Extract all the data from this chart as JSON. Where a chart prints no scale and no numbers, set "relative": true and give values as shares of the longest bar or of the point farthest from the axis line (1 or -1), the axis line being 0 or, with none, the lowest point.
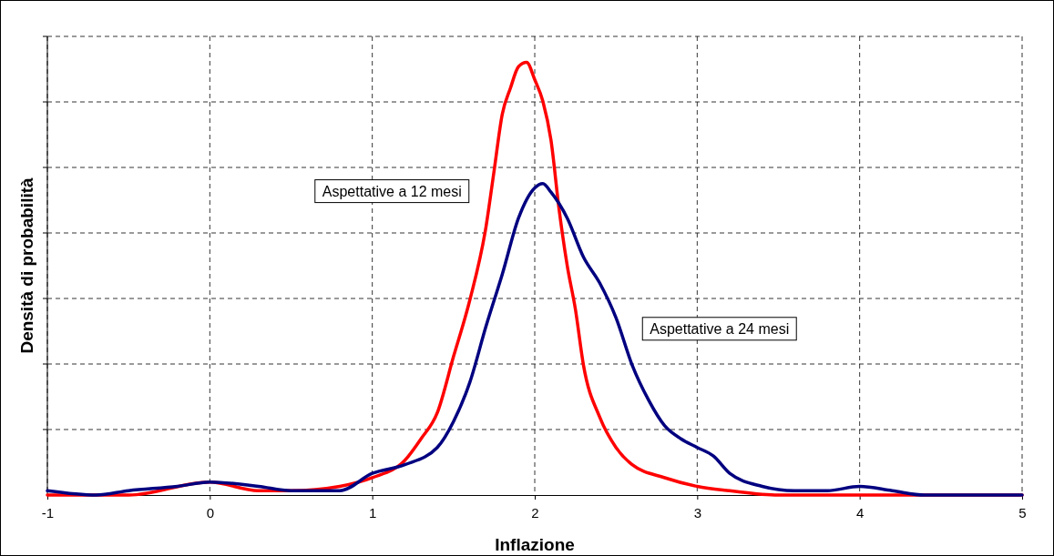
{
  "chart_data": {
    "type": "line",
    "xlabel": "Inflazione",
    "ylabel": "Densità di probabilità",
    "relative": true,
    "xlim": [
      -1,
      5
    ],
    "xticks": [
      -1,
      0,
      1,
      2,
      3,
      4,
      5
    ],
    "grid": true,
    "marker": "none",
    "line_style": "solid",
    "series": [
      {
        "name": "Aspettative a 12 mesi",
        "color": "#ff0000",
        "x": [
          -1,
          -0.5,
          0,
          0.3,
          0.5,
          0.8,
          1.0,
          1.2,
          1.3,
          1.4,
          1.5,
          1.6,
          1.7,
          1.75,
          1.8,
          1.85,
          1.9,
          1.95,
          2.0,
          2.05,
          2.1,
          2.15,
          2.2,
          2.25,
          2.3,
          2.4,
          2.5,
          2.6,
          2.8,
          3.0,
          3.2,
          3.5,
          4,
          5
        ],
        "values": [
          0,
          0,
          0.03,
          0.01,
          0.01,
          0.02,
          0.04,
          0.08,
          0.13,
          0.19,
          0.32,
          0.45,
          0.62,
          0.75,
          0.88,
          0.94,
          0.99,
          1.0,
          0.96,
          0.91,
          0.82,
          0.66,
          0.53,
          0.43,
          0.3,
          0.18,
          0.11,
          0.07,
          0.04,
          0.02,
          0.01,
          0,
          0,
          0
        ]
      },
      {
        "name": "Aspettative a 24 mesi",
        "color": "#000080",
        "x": [
          -1,
          -0.7,
          -0.5,
          -0.2,
          0,
          0.3,
          0.5,
          0.8,
          1.0,
          1.2,
          1.4,
          1.5,
          1.6,
          1.7,
          1.8,
          1.9,
          2.0,
          2.05,
          2.1,
          2.2,
          2.3,
          2.4,
          2.5,
          2.6,
          2.7,
          2.8,
          2.9,
          3.0,
          3.1,
          3.2,
          3.4,
          3.6,
          3.8,
          4.0,
          4.2,
          4.4,
          4.6,
          5
        ],
        "values": [
          0.01,
          0,
          0.01,
          0.02,
          0.03,
          0.02,
          0.01,
          0.01,
          0.05,
          0.07,
          0.11,
          0.17,
          0.26,
          0.39,
          0.51,
          0.64,
          0.71,
          0.72,
          0.7,
          0.64,
          0.55,
          0.49,
          0.41,
          0.3,
          0.22,
          0.16,
          0.13,
          0.11,
          0.09,
          0.05,
          0.02,
          0.01,
          0.01,
          0.02,
          0.01,
          0,
          0,
          0
        ]
      }
    ]
  }
}
